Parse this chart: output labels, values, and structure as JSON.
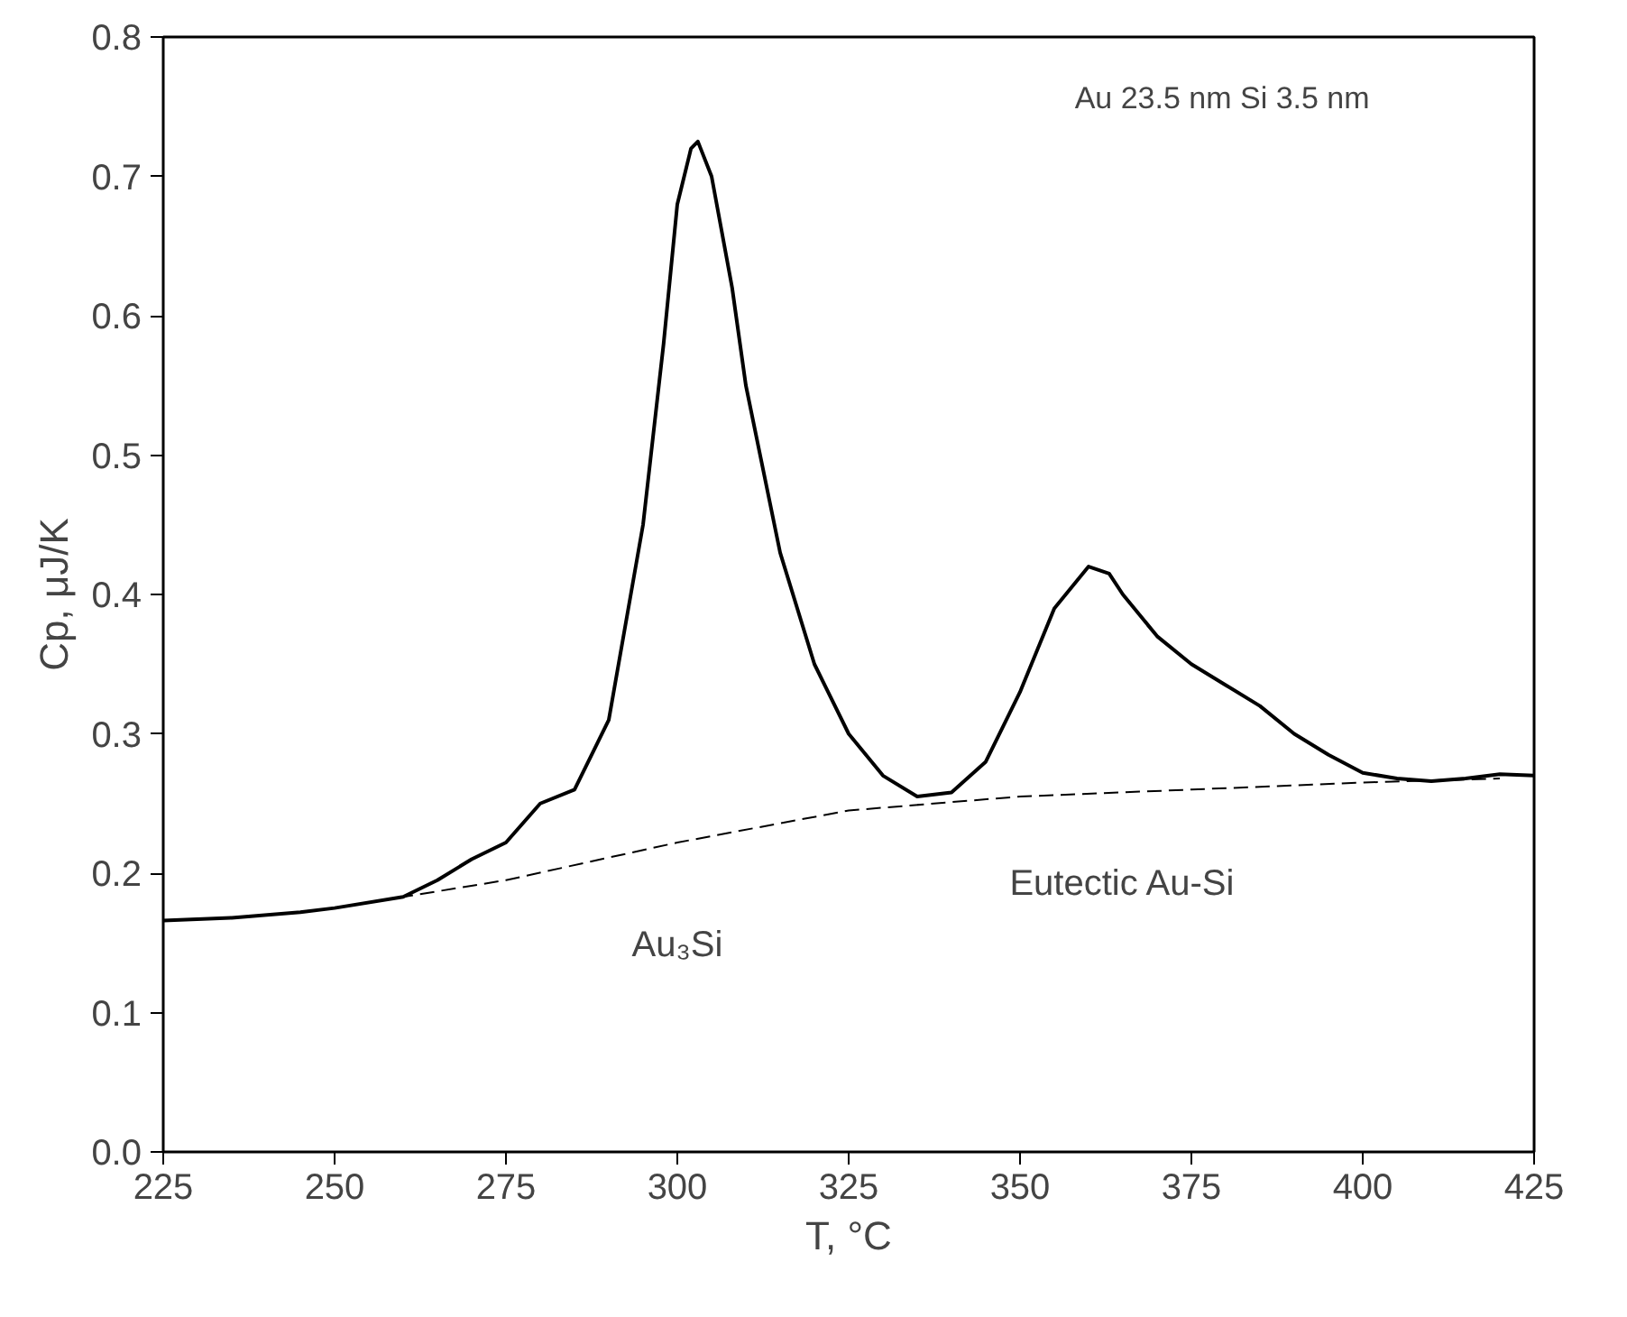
{
  "chart_data": {
    "type": "line",
    "xlabel": "T, °C",
    "ylabel": "Cp, μJ/K",
    "xlim": [
      225,
      425
    ],
    "xticks": [
      225,
      250,
      275,
      300,
      325,
      350,
      375,
      400,
      425
    ],
    "ylim": [
      0,
      0.8
    ],
    "yticks": [
      {
        "value": 0,
        "label": "0.0"
      },
      0.1,
      0.2,
      0.3,
      0.4,
      0.5,
      0.6,
      0.7,
      0.8
    ],
    "grid": false,
    "marker": "none",
    "series": [
      {
        "color": "#000000",
        "line_style": "solid",
        "x": [
          225,
          235,
          245,
          250,
          260,
          265,
          270,
          275,
          280,
          285,
          290,
          295,
          298,
          300,
          302,
          303,
          305,
          308,
          310,
          315,
          320,
          325,
          330,
          335,
          340,
          345,
          350,
          355,
          360,
          363,
          365,
          370,
          375,
          380,
          385,
          390,
          395,
          400,
          405,
          410,
          415,
          420,
          425
        ],
        "values": [
          0.166,
          0.168,
          0.172,
          0.175,
          0.183,
          0.195,
          0.21,
          0.222,
          0.25,
          0.26,
          0.31,
          0.45,
          0.58,
          0.68,
          0.72,
          0.725,
          0.7,
          0.62,
          0.55,
          0.43,
          0.35,
          0.3,
          0.27,
          0.255,
          0.258,
          0.28,
          0.33,
          0.39,
          0.42,
          0.415,
          0.4,
          0.37,
          0.35,
          0.335,
          0.32,
          0.3,
          0.285,
          0.272,
          0.268,
          0.266,
          0.268,
          0.271,
          0.27
        ]
      },
      {
        "color": "#000000",
        "line_style": "dashed",
        "x": [
          250,
          260,
          275,
          300,
          325,
          350,
          375,
          400,
          420
        ],
        "values": [
          0.175,
          0.183,
          0.195,
          0.222,
          0.245,
          0.255,
          0.26,
          0.265,
          0.268
        ]
      }
    ],
    "annotations": [
      "Au 23.5 nm Si 3.5 nm",
      "Au₃Si",
      "Eutectic Au-Si"
    ]
  }
}
